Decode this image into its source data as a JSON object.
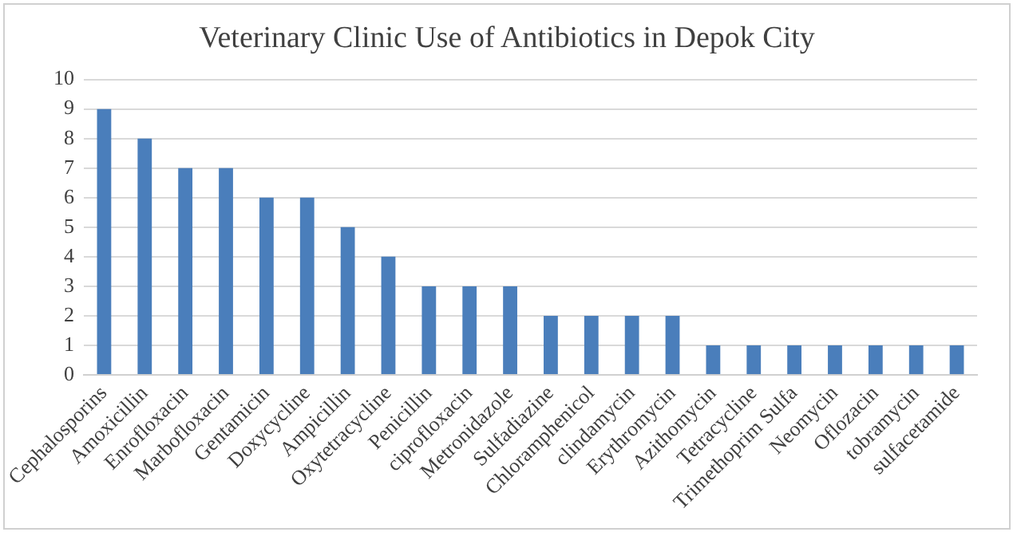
{
  "chart_data": {
    "type": "bar",
    "title": "Veterinary Clinic Use of Antibiotics in Depok City",
    "categories": [
      "Cephalosporins",
      "Amoxicillin",
      "Enrofloxacin",
      "Marbofloxacin",
      "Gentamicin",
      "Doxycycline",
      "Ampicillin",
      "Oxytetracycline",
      "Penicillin",
      "ciprofloxacin",
      "Metronidazole",
      "Sulfadiazine",
      "Chloramphenicol",
      "clindamycin",
      "Erythromycin",
      "Azithomycin",
      "Tetracycline",
      "Trimethoprim Sulfa",
      "Neomycin",
      "Oflozacin",
      "tobramycin",
      "sulfacetamide"
    ],
    "values": [
      9,
      8,
      7,
      7,
      6,
      6,
      5,
      4,
      3,
      3,
      3,
      2,
      2,
      2,
      2,
      1,
      1,
      1,
      1,
      1,
      1,
      1
    ],
    "color": "#4a7ebb",
    "ylim": [
      0,
      10
    ],
    "yticks": [
      0,
      1,
      2,
      3,
      4,
      5,
      6,
      7,
      8,
      9,
      10
    ],
    "grid": "y"
  }
}
